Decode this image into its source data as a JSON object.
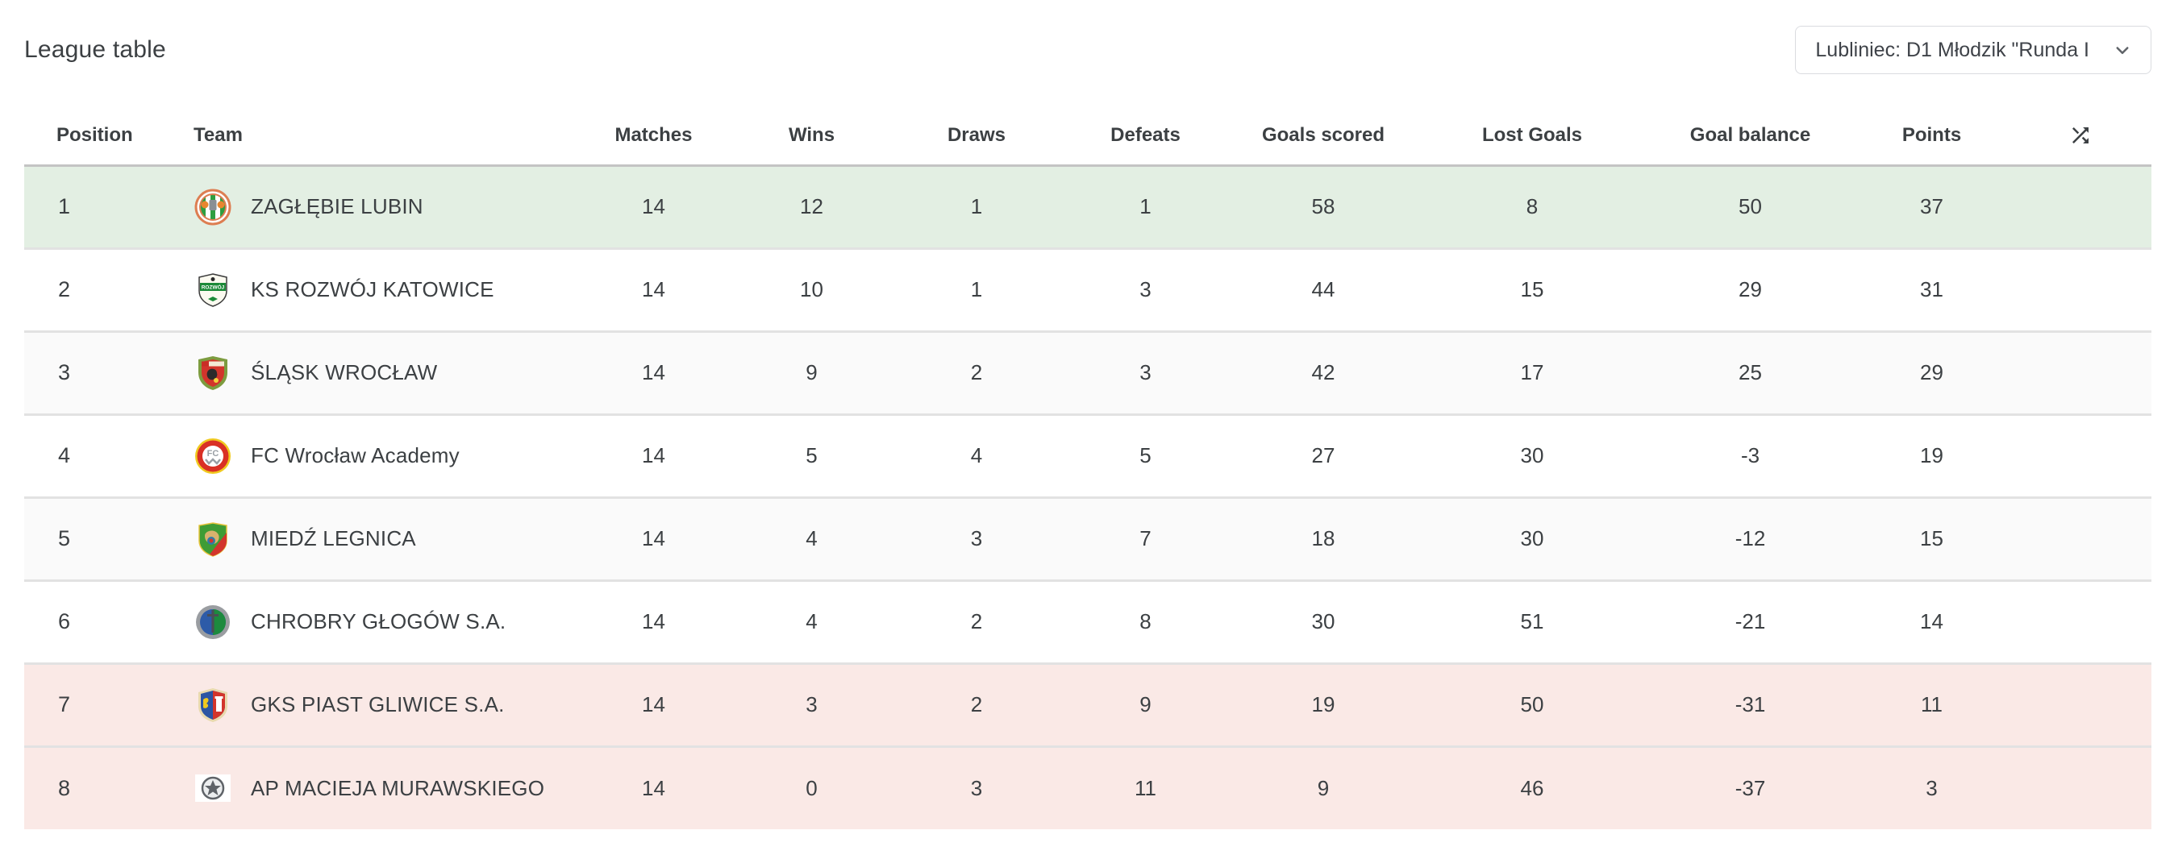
{
  "header": {
    "title": "League table",
    "season_select": {
      "value": "Lubliniec: D1 Młodzik \"Runda I",
      "icon": "chevron-down-icon",
      "border_color": "#dadce0"
    }
  },
  "table": {
    "columns": [
      {
        "key": "position",
        "label": "Position"
      },
      {
        "key": "team",
        "label": "Team"
      },
      {
        "key": "matches",
        "label": "Matches"
      },
      {
        "key": "wins",
        "label": "Wins"
      },
      {
        "key": "draws",
        "label": "Draws"
      },
      {
        "key": "defeats",
        "label": "Defeats"
      },
      {
        "key": "goals_scored",
        "label": "Goals scored"
      },
      {
        "key": "lost_goals",
        "label": "Lost Goals"
      },
      {
        "key": "goal_balance",
        "label": "Goal balance"
      },
      {
        "key": "points",
        "label": "Points"
      }
    ],
    "sort_icon": "shuffle-icon",
    "zone_colors": {
      "promotion": "#e3efe3",
      "relegation": "#fae9e6",
      "stripe": "#fafafa",
      "default": "#ffffff"
    },
    "rows": [
      {
        "position": 1,
        "team": "ZAGŁĘBIE LUBIN",
        "matches": 14,
        "wins": 12,
        "draws": 1,
        "defeats": 1,
        "goals_scored": 58,
        "lost_goals": 8,
        "goal_balance": 50,
        "points": 37,
        "zone": "promotion",
        "badge": {
          "variant": "zaglebie-lubin",
          "colors": {
            "ring": "#dd7e52",
            "bg": "#ffffff",
            "stripe": "#2f9e41",
            "accent": "#e8862f",
            "detail": "#8a8f94"
          }
        }
      },
      {
        "position": 2,
        "team": "KS ROZWÓJ KATOWICE",
        "matches": 14,
        "wins": 10,
        "draws": 1,
        "defeats": 3,
        "goals_scored": 44,
        "lost_goals": 15,
        "goal_balance": 29,
        "points": 31,
        "zone": "",
        "badge": {
          "variant": "rozwoj-katowice",
          "text": "ROZWÓJ",
          "colors": {
            "bg": "#fbfaf0",
            "band": "#1c8a38",
            "outline": "#3a3a3a",
            "text": "#ffffff",
            "mark": "#2b2b2b"
          }
        }
      },
      {
        "position": 3,
        "team": "ŚLĄSK WROCŁAW",
        "matches": 14,
        "wins": 9,
        "draws": 2,
        "defeats": 3,
        "goals_scored": 42,
        "lost_goals": 17,
        "goal_balance": 25,
        "points": 29,
        "zone": "",
        "badge": {
          "variant": "slask-wroclaw",
          "colors": {
            "wreath": "#7d9c3f",
            "bg": "#d2352c",
            "band": "#f3ead6",
            "band2": "#c92e26",
            "detail": "#2b2b2b",
            "accent": "#f2d23c"
          }
        }
      },
      {
        "position": 4,
        "team": "FC Wrocław Academy",
        "matches": 14,
        "wins": 5,
        "draws": 4,
        "defeats": 5,
        "goals_scored": 27,
        "lost_goals": 30,
        "goal_balance": -3,
        "points": 19,
        "zone": "",
        "badge": {
          "variant": "fc-wroclaw",
          "text": "FC",
          "colors": {
            "ring": "#f0c91f",
            "bg": "#d93025",
            "center": "#ffffff",
            "text": "#9aa0a6"
          }
        }
      },
      {
        "position": 5,
        "team": "MIEDŹ LEGNICA",
        "matches": 14,
        "wins": 4,
        "draws": 3,
        "defeats": 7,
        "goals_scored": 18,
        "lost_goals": 30,
        "goal_balance": -12,
        "points": 15,
        "zone": "",
        "badge": {
          "variant": "miedz-legnica",
          "colors": {
            "bg": "#3f9c35",
            "accent": "#d2352c",
            "detail": "#d8b26e",
            "outline": "#e8c53c",
            "eye": "#2e7ca8"
          }
        }
      },
      {
        "position": 6,
        "team": "CHROBRY GŁOGÓW S.A.",
        "matches": 14,
        "wins": 4,
        "draws": 2,
        "defeats": 8,
        "goals_scored": 30,
        "lost_goals": 51,
        "goal_balance": -21,
        "points": 14,
        "zone": "",
        "badge": {
          "variant": "chrobry-glogow",
          "colors": {
            "ring": "#9a9da1",
            "left": "#2d5ba8",
            "right": "#1d8a3e",
            "sword": "#4a4e54"
          }
        }
      },
      {
        "position": 7,
        "team": "GKS PIAST GLIWICE S.A.",
        "matches": 14,
        "wins": 3,
        "draws": 2,
        "defeats": 9,
        "goals_scored": 19,
        "lost_goals": 50,
        "goal_balance": -31,
        "points": 11,
        "zone": "relegation",
        "badge": {
          "variant": "piast-gliwice",
          "colors": {
            "outline": "#e8d9ae",
            "left": "#2b55a3",
            "right": "#d2352c",
            "accent": "#f0c91f",
            "tower": "#ffffff"
          }
        }
      },
      {
        "position": 8,
        "team": "AP MACIEJA MURAWSKIEGO",
        "matches": 14,
        "wins": 0,
        "draws": 3,
        "defeats": 11,
        "goals_scored": 9,
        "lost_goals": 46,
        "goal_balance": -37,
        "points": 3,
        "zone": "relegation",
        "badge": {
          "variant": "ap-murawskiego",
          "colors": {
            "bg": "#ffffff",
            "inner": "#eceeef",
            "ring": "#5f6368"
          }
        }
      }
    ]
  }
}
